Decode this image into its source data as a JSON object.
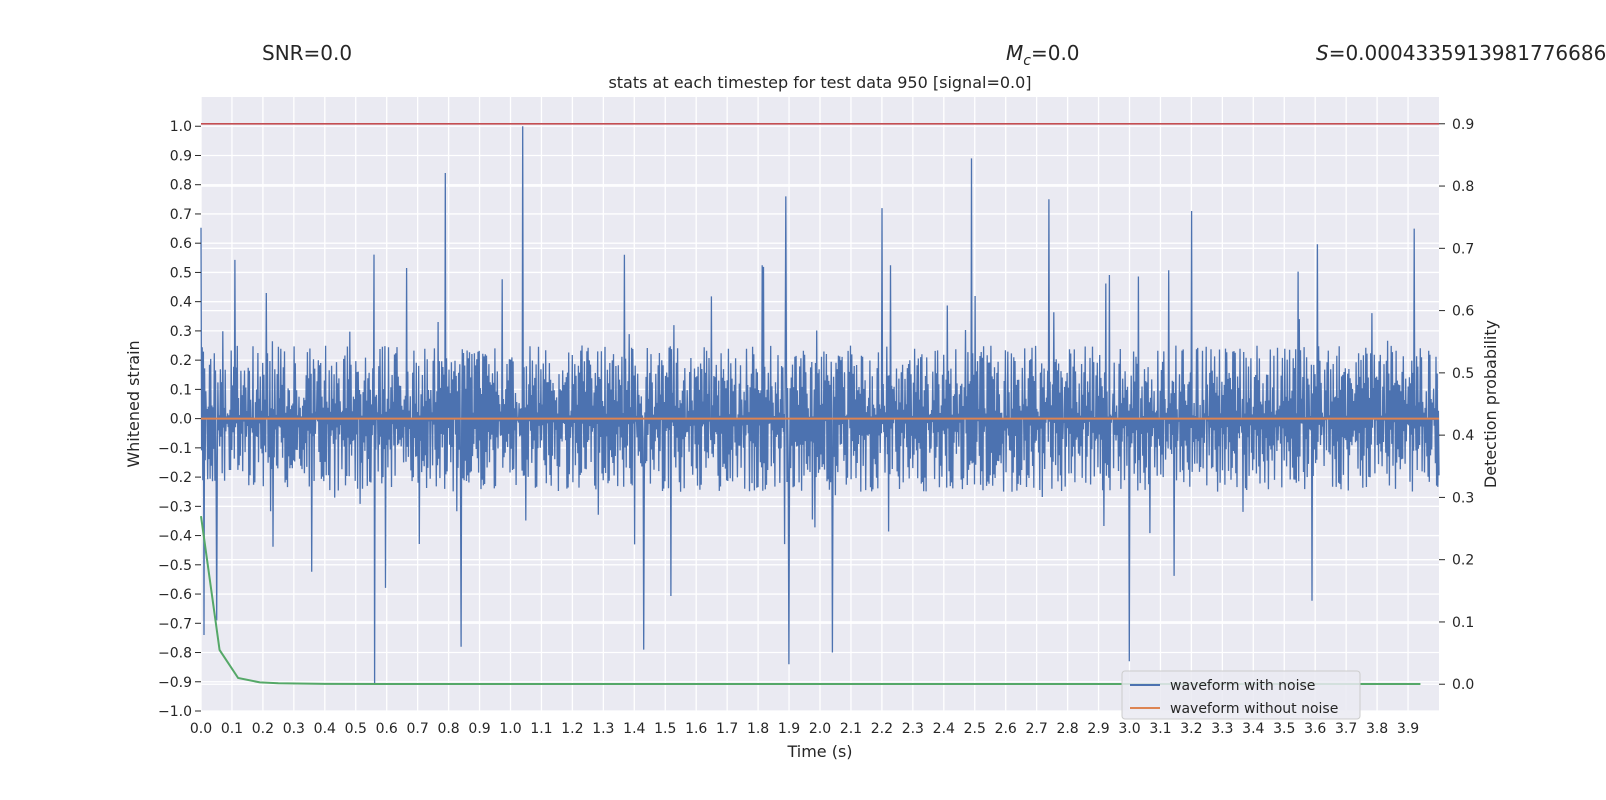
{
  "annotations": {
    "snr": "SNR=0.0",
    "mc_symbol": "M",
    "mc_sub": "c",
    "mc_value": "=0.0",
    "s_symbol": "S",
    "s_value": "=0.0004335913981776686"
  },
  "chart_data": {
    "type": "line",
    "title": "stats at each timestep for test data 950 [signal=0.0]",
    "xlabel": "Time (s)",
    "ylabel": "Whitened strain",
    "y2label": "Detection probability",
    "xlim": [
      0.0,
      4.0
    ],
    "ylim": [
      -1.0,
      1.1
    ],
    "y2lim": [
      -0.043,
      0.943
    ],
    "grid": true,
    "x_ticks": [
      0.0,
      0.1,
      0.2,
      0.3,
      0.4,
      0.5,
      0.6,
      0.7,
      0.8,
      0.9,
      1.0,
      1.1,
      1.2,
      1.3,
      1.4,
      1.5,
      1.6,
      1.7,
      1.8,
      1.9,
      2.0,
      2.1,
      2.2,
      2.3,
      2.4,
      2.5,
      2.6,
      2.7,
      2.8,
      2.9,
      3.0,
      3.1,
      3.2,
      3.3,
      3.4,
      3.5,
      3.6,
      3.7,
      3.8,
      3.9
    ],
    "y_ticks": [
      -1.0,
      -0.9,
      -0.8,
      -0.7,
      -0.6,
      -0.5,
      -0.4,
      -0.3,
      -0.2,
      -0.1,
      0.0,
      0.1,
      0.2,
      0.3,
      0.4,
      0.5,
      0.6,
      0.7,
      0.8,
      0.9,
      1.0
    ],
    "y2_ticks": [
      0.0,
      0.1,
      0.2,
      0.3,
      0.4,
      0.5,
      0.6,
      0.7,
      0.8,
      0.9
    ],
    "legend": {
      "placement": "lower-right"
    },
    "colors": {
      "noise": "#4c72b0",
      "clean": "#dd8452",
      "prob": "#55a868",
      "threshold": "#c44e52",
      "bg": "#eaeaf2"
    },
    "series": [
      {
        "name": "waveform with noise",
        "axis": "left",
        "envelope": {
          "band_low": -0.25,
          "band_high": 0.25,
          "spike_amplitude": 0.5,
          "samples": 2048
        },
        "peaks": [
          {
            "x": 1.04,
            "y": 1.0
          },
          {
            "x": 2.49,
            "y": 0.89
          },
          {
            "x": 0.79,
            "y": 0.84
          },
          {
            "x": 0.56,
            "y": -0.91
          },
          {
            "x": 3.0,
            "y": -0.83
          },
          {
            "x": 1.9,
            "y": -0.84
          },
          {
            "x": 2.04,
            "y": -0.8
          },
          {
            "x": 0.84,
            "y": -0.78
          },
          {
            "x": 1.43,
            "y": -0.79
          },
          {
            "x": 0.01,
            "y": -0.74
          },
          {
            "x": 1.89,
            "y": 0.76
          },
          {
            "x": 2.2,
            "y": 0.72
          },
          {
            "x": 3.2,
            "y": 0.71
          },
          {
            "x": 2.74,
            "y": 0.75
          },
          {
            "x": 3.92,
            "y": 0.65
          },
          {
            "x": 0.05,
            "y": -0.69
          }
        ]
      },
      {
        "name": "waveform without noise",
        "axis": "left",
        "x": [
          0.0,
          4.0
        ],
        "y": [
          0.0,
          0.0
        ]
      },
      {
        "name": "",
        "axis": "right",
        "x": [
          0.0,
          0.06,
          0.12,
          0.19,
          0.25,
          0.4,
          0.6,
          1.0,
          2.0,
          3.0,
          3.94
        ],
        "y": [
          0.27,
          0.055,
          0.01,
          0.003,
          0.0015,
          0.0006,
          0.0004,
          0.0004,
          0.0004,
          0.0004,
          0.0004
        ]
      }
    ],
    "threshold": {
      "axis": "right",
      "value": 0.9
    }
  }
}
